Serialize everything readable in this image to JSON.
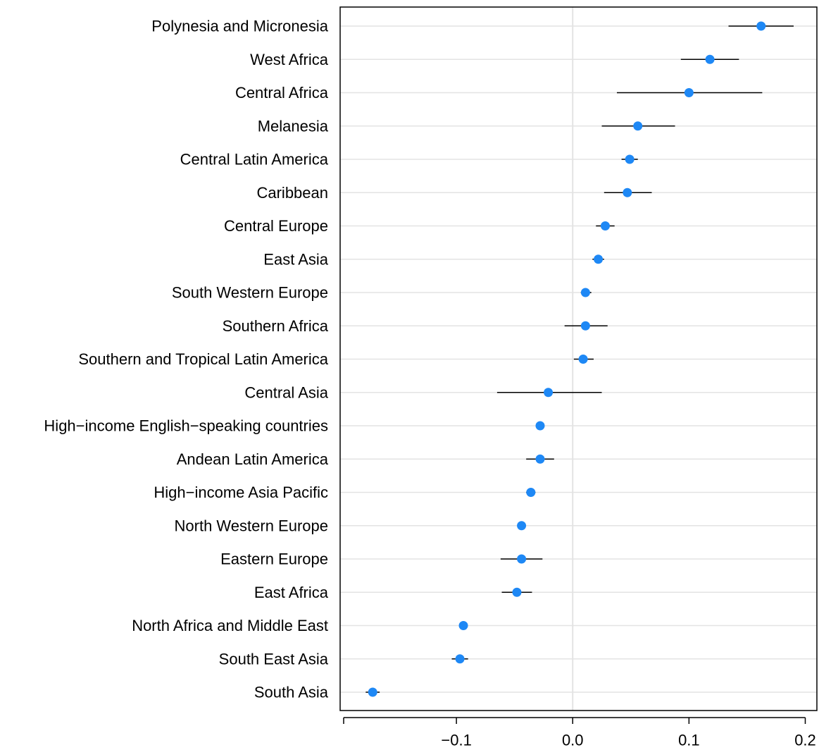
{
  "chart_data": {
    "type": "scatter",
    "subtype": "dot-and-whisker",
    "title": "",
    "xlabel": "",
    "ylabel": "",
    "xlim": [
      -0.2,
      0.21
    ],
    "xticks": [
      -0.1,
      0.0,
      0.1,
      0.2
    ],
    "xtick_labels": [
      "−0.1",
      "0.0",
      "0.1",
      "0.2"
    ],
    "grid": true,
    "zero_line": 0,
    "point_color": "#1e88f5",
    "categories": [
      "Polynesia and Micronesia",
      "West Africa",
      "Central Africa",
      "Melanesia",
      "Central Latin America",
      "Caribbean",
      "Central Europe",
      "East Asia",
      "South Western Europe",
      "Southern Africa",
      "Southern and Tropical Latin America",
      "Central Asia",
      "High−income English−speaking countries",
      "Andean Latin America",
      "High−income Asia Pacific",
      "North Western Europe",
      "Eastern Europe",
      "East Africa",
      "North Africa and Middle East",
      "South East Asia",
      "South Asia"
    ],
    "estimates": [
      0.162,
      0.118,
      0.1,
      0.056,
      0.049,
      0.047,
      0.028,
      0.022,
      0.011,
      0.011,
      0.009,
      -0.021,
      -0.028,
      -0.028,
      -0.036,
      -0.044,
      -0.044,
      -0.048,
      -0.094,
      -0.097,
      -0.172
    ],
    "lower": [
      0.134,
      0.093,
      0.038,
      0.025,
      0.042,
      0.027,
      0.02,
      0.017,
      0.007,
      -0.007,
      0.001,
      -0.065,
      -0.031,
      -0.04,
      -0.04,
      -0.047,
      -0.062,
      -0.061,
      -0.097,
      -0.104,
      -0.178
    ],
    "upper": [
      0.19,
      0.143,
      0.163,
      0.088,
      0.056,
      0.068,
      0.036,
      0.027,
      0.016,
      0.03,
      0.018,
      0.025,
      -0.025,
      -0.016,
      -0.032,
      -0.041,
      -0.026,
      -0.035,
      -0.091,
      -0.09,
      -0.166
    ]
  }
}
